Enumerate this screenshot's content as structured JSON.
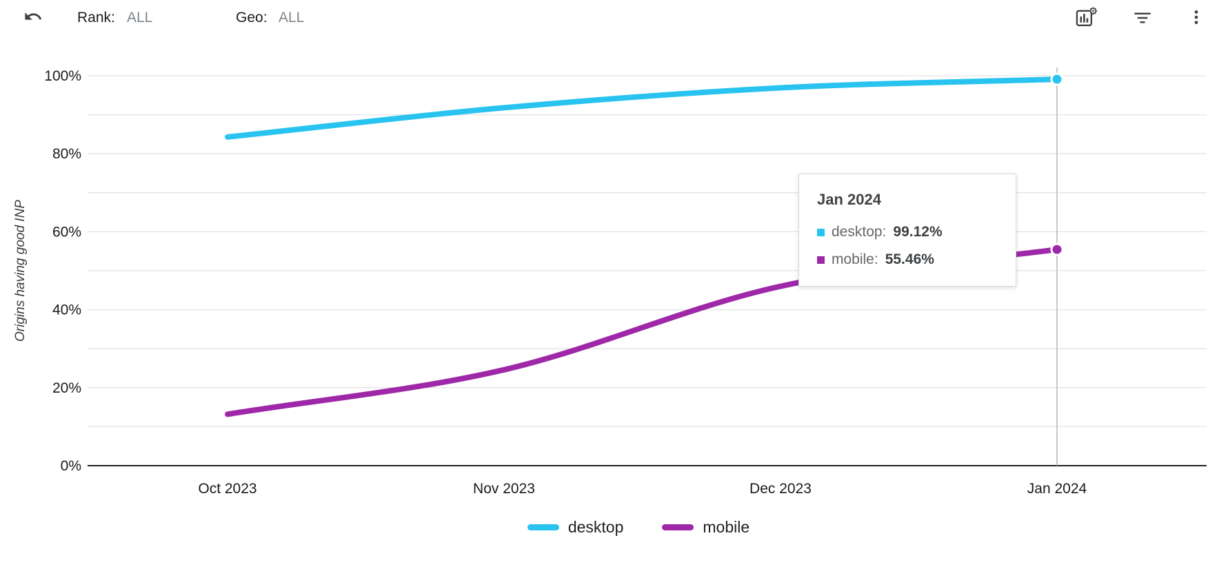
{
  "toolbar": {
    "rank_label": "Rank:",
    "rank_value": "ALL",
    "geo_label": "Geo:",
    "geo_value": "ALL",
    "icons": [
      "undo-icon",
      "chart-settings-icon",
      "filter-icon",
      "more-vert-icon"
    ]
  },
  "chart_data": {
    "type": "line",
    "title": "",
    "ylabel": "Origins having good INP",
    "xlabel": "",
    "x_categories": [
      "Oct 2023",
      "Nov 2023",
      "Dec 2023",
      "Jan 2024"
    ],
    "y_ticks": [
      "0%",
      "20%",
      "40%",
      "60%",
      "80%",
      "100%"
    ],
    "ylim": [
      0,
      100
    ],
    "grid_step": 10,
    "grid": true,
    "legend_position": "bottom",
    "crosshair_index": 3,
    "series": [
      {
        "name": "desktop",
        "color": "#29c3f0",
        "values": [
          84.3,
          91.8,
          96.9,
          99.12
        ]
      },
      {
        "name": "mobile",
        "color": "#9e28a8",
        "values": [
          13.2,
          24.6,
          46.0,
          55.46
        ]
      }
    ]
  },
  "tooltip": {
    "title": "Jan 2024",
    "items": [
      {
        "label": "desktop:",
        "value": "99.12%",
        "color": "#29c3f0"
      },
      {
        "label": "mobile:",
        "value": "55.46%",
        "color": "#9e28a8"
      }
    ]
  },
  "legend": [
    {
      "label": "desktop",
      "color": "#29c3f0"
    },
    {
      "label": "mobile",
      "color": "#9e28a8"
    }
  ]
}
